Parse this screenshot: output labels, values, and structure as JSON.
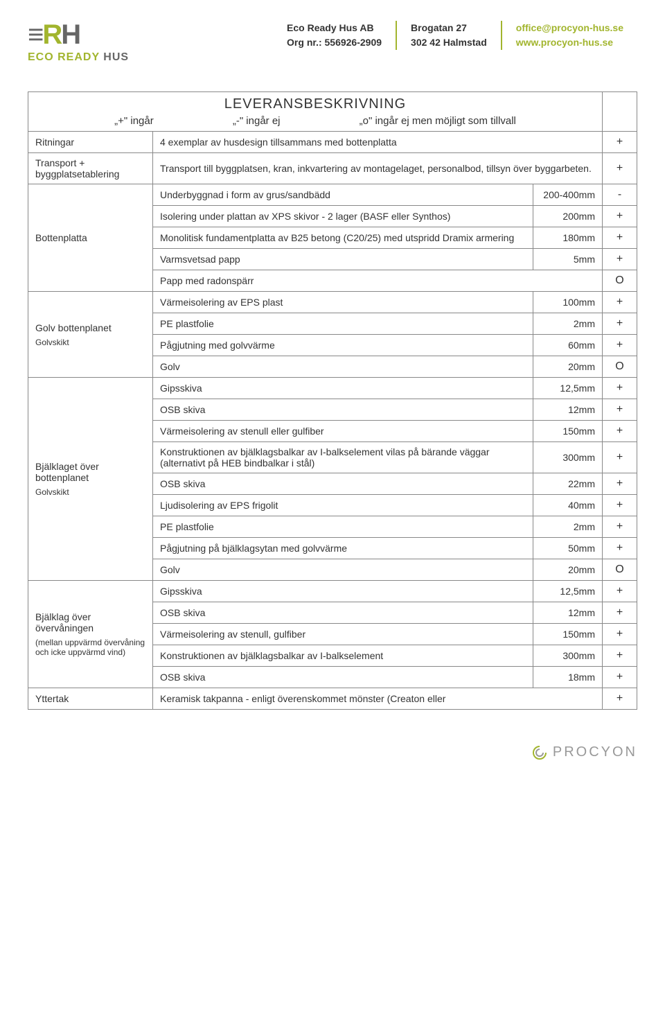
{
  "header": {
    "company": "Eco Ready Hus AB",
    "orgnr_label": "Org nr.:",
    "orgnr": "556926-2909",
    "street": "Brogatan 27",
    "city": "302 42 Halmstad",
    "email": "office@procyon-hus.se",
    "web": "www.procyon-hus.se"
  },
  "title": "LEVERANSBESKRIVNING",
  "legend": {
    "plus": "„+\" ingår",
    "minus": "„-\" ingår ej",
    "o": "„o\" ingår ej men möjligt som tillvall"
  },
  "sections": [
    {
      "label": "Ritningar",
      "rows": [
        {
          "desc": "4 exemplar av husdesign tillsammans med bottenplatta",
          "dim": "",
          "sym": "+"
        }
      ]
    },
    {
      "label": "Transport + byggplatsetablering",
      "rows": [
        {
          "desc": "Transport till byggplatsen, kran, inkvartering av montagelaget, personalbod, tillsyn över byggarbeten.",
          "dim": "",
          "sym": "+"
        }
      ]
    },
    {
      "label": "Bottenplatta",
      "rows": [
        {
          "desc": "Underbyggnad i form av grus/sandbädd",
          "dim": "200-400mm",
          "sym": "-"
        },
        {
          "desc": "Isolering under plattan av XPS skivor - 2 lager (BASF eller Synthos)",
          "dim": "200mm",
          "sym": "+"
        },
        {
          "desc": "Monolitisk fundamentplatta av B25 betong (C20/25) med utspridd Dramix armering",
          "dim": "180mm",
          "sym": "+"
        },
        {
          "desc": "Varmsvetsad papp",
          "dim": "5mm",
          "sym": "+"
        },
        {
          "desc": "Papp med radonspärr",
          "dim": "",
          "sym": "O"
        }
      ]
    },
    {
      "label": "Golv bottenplanet",
      "sublabel": "Golvskikt",
      "rows": [
        {
          "desc": "Värmeisolering av EPS plast",
          "dim": "100mm",
          "sym": "+"
        },
        {
          "desc": "PE plastfolie",
          "dim": "2mm",
          "sym": "+"
        },
        {
          "desc": "Pågjutning med golvvärme",
          "dim": "60mm",
          "sym": "+"
        },
        {
          "desc": "Golv",
          "dim": "20mm",
          "sym": "O"
        }
      ]
    },
    {
      "label": "Bjälklaget över bottenplanet",
      "sublabel": "Golvskikt",
      "rows": [
        {
          "desc": "Gipsskiva",
          "dim": "12,5mm",
          "sym": "+"
        },
        {
          "desc": "OSB skiva",
          "dim": "12mm",
          "sym": "+"
        },
        {
          "desc": "Värmeisolering av stenull eller gulfiber",
          "dim": "150mm",
          "sym": "+"
        },
        {
          "desc": "Konstruktionen av bjälklagsbalkar av I-balkselement vilas på bärande väggar (alternativt på HEB bindbalkar i stål)",
          "dim": "300mm",
          "sym": "+"
        },
        {
          "desc": "OSB skiva",
          "dim": "22mm",
          "sym": "+"
        },
        {
          "desc": "Ljudisolering av EPS frigolit",
          "dim": "40mm",
          "sym": "+"
        },
        {
          "desc": "PE plastfolie",
          "dim": "2mm",
          "sym": "+"
        },
        {
          "desc": "Pågjutning på bjälklagsytan med golvvärme",
          "dim": "50mm",
          "sym": "+"
        },
        {
          "desc": "Golv",
          "dim": "20mm",
          "sym": "O"
        }
      ]
    },
    {
      "label": "Bjälklag över övervåningen",
      "sublabel": "(mellan uppvärmd övervåning och icke uppvärmd vind)",
      "rows": [
        {
          "desc": "Gipsskiva",
          "dim": "12,5mm",
          "sym": "+"
        },
        {
          "desc": "OSB skiva",
          "dim": "12mm",
          "sym": "+"
        },
        {
          "desc": "Värmeisolering av stenull, gulfiber",
          "dim": "150mm",
          "sym": "+"
        },
        {
          "desc": "Konstruktionen av bjälklagsbalkar av I-balkselement",
          "dim": "300mm",
          "sym": "+"
        },
        {
          "desc": "OSB skiva",
          "dim": "18mm",
          "sym": "+"
        }
      ]
    },
    {
      "label": "Yttertak",
      "rows": [
        {
          "desc": "Keramisk takpanna - enligt överenskommet mönster (Creaton eller",
          "dim": "",
          "sym": "+"
        }
      ]
    }
  ],
  "footer": {
    "brand": "PROCYON"
  }
}
